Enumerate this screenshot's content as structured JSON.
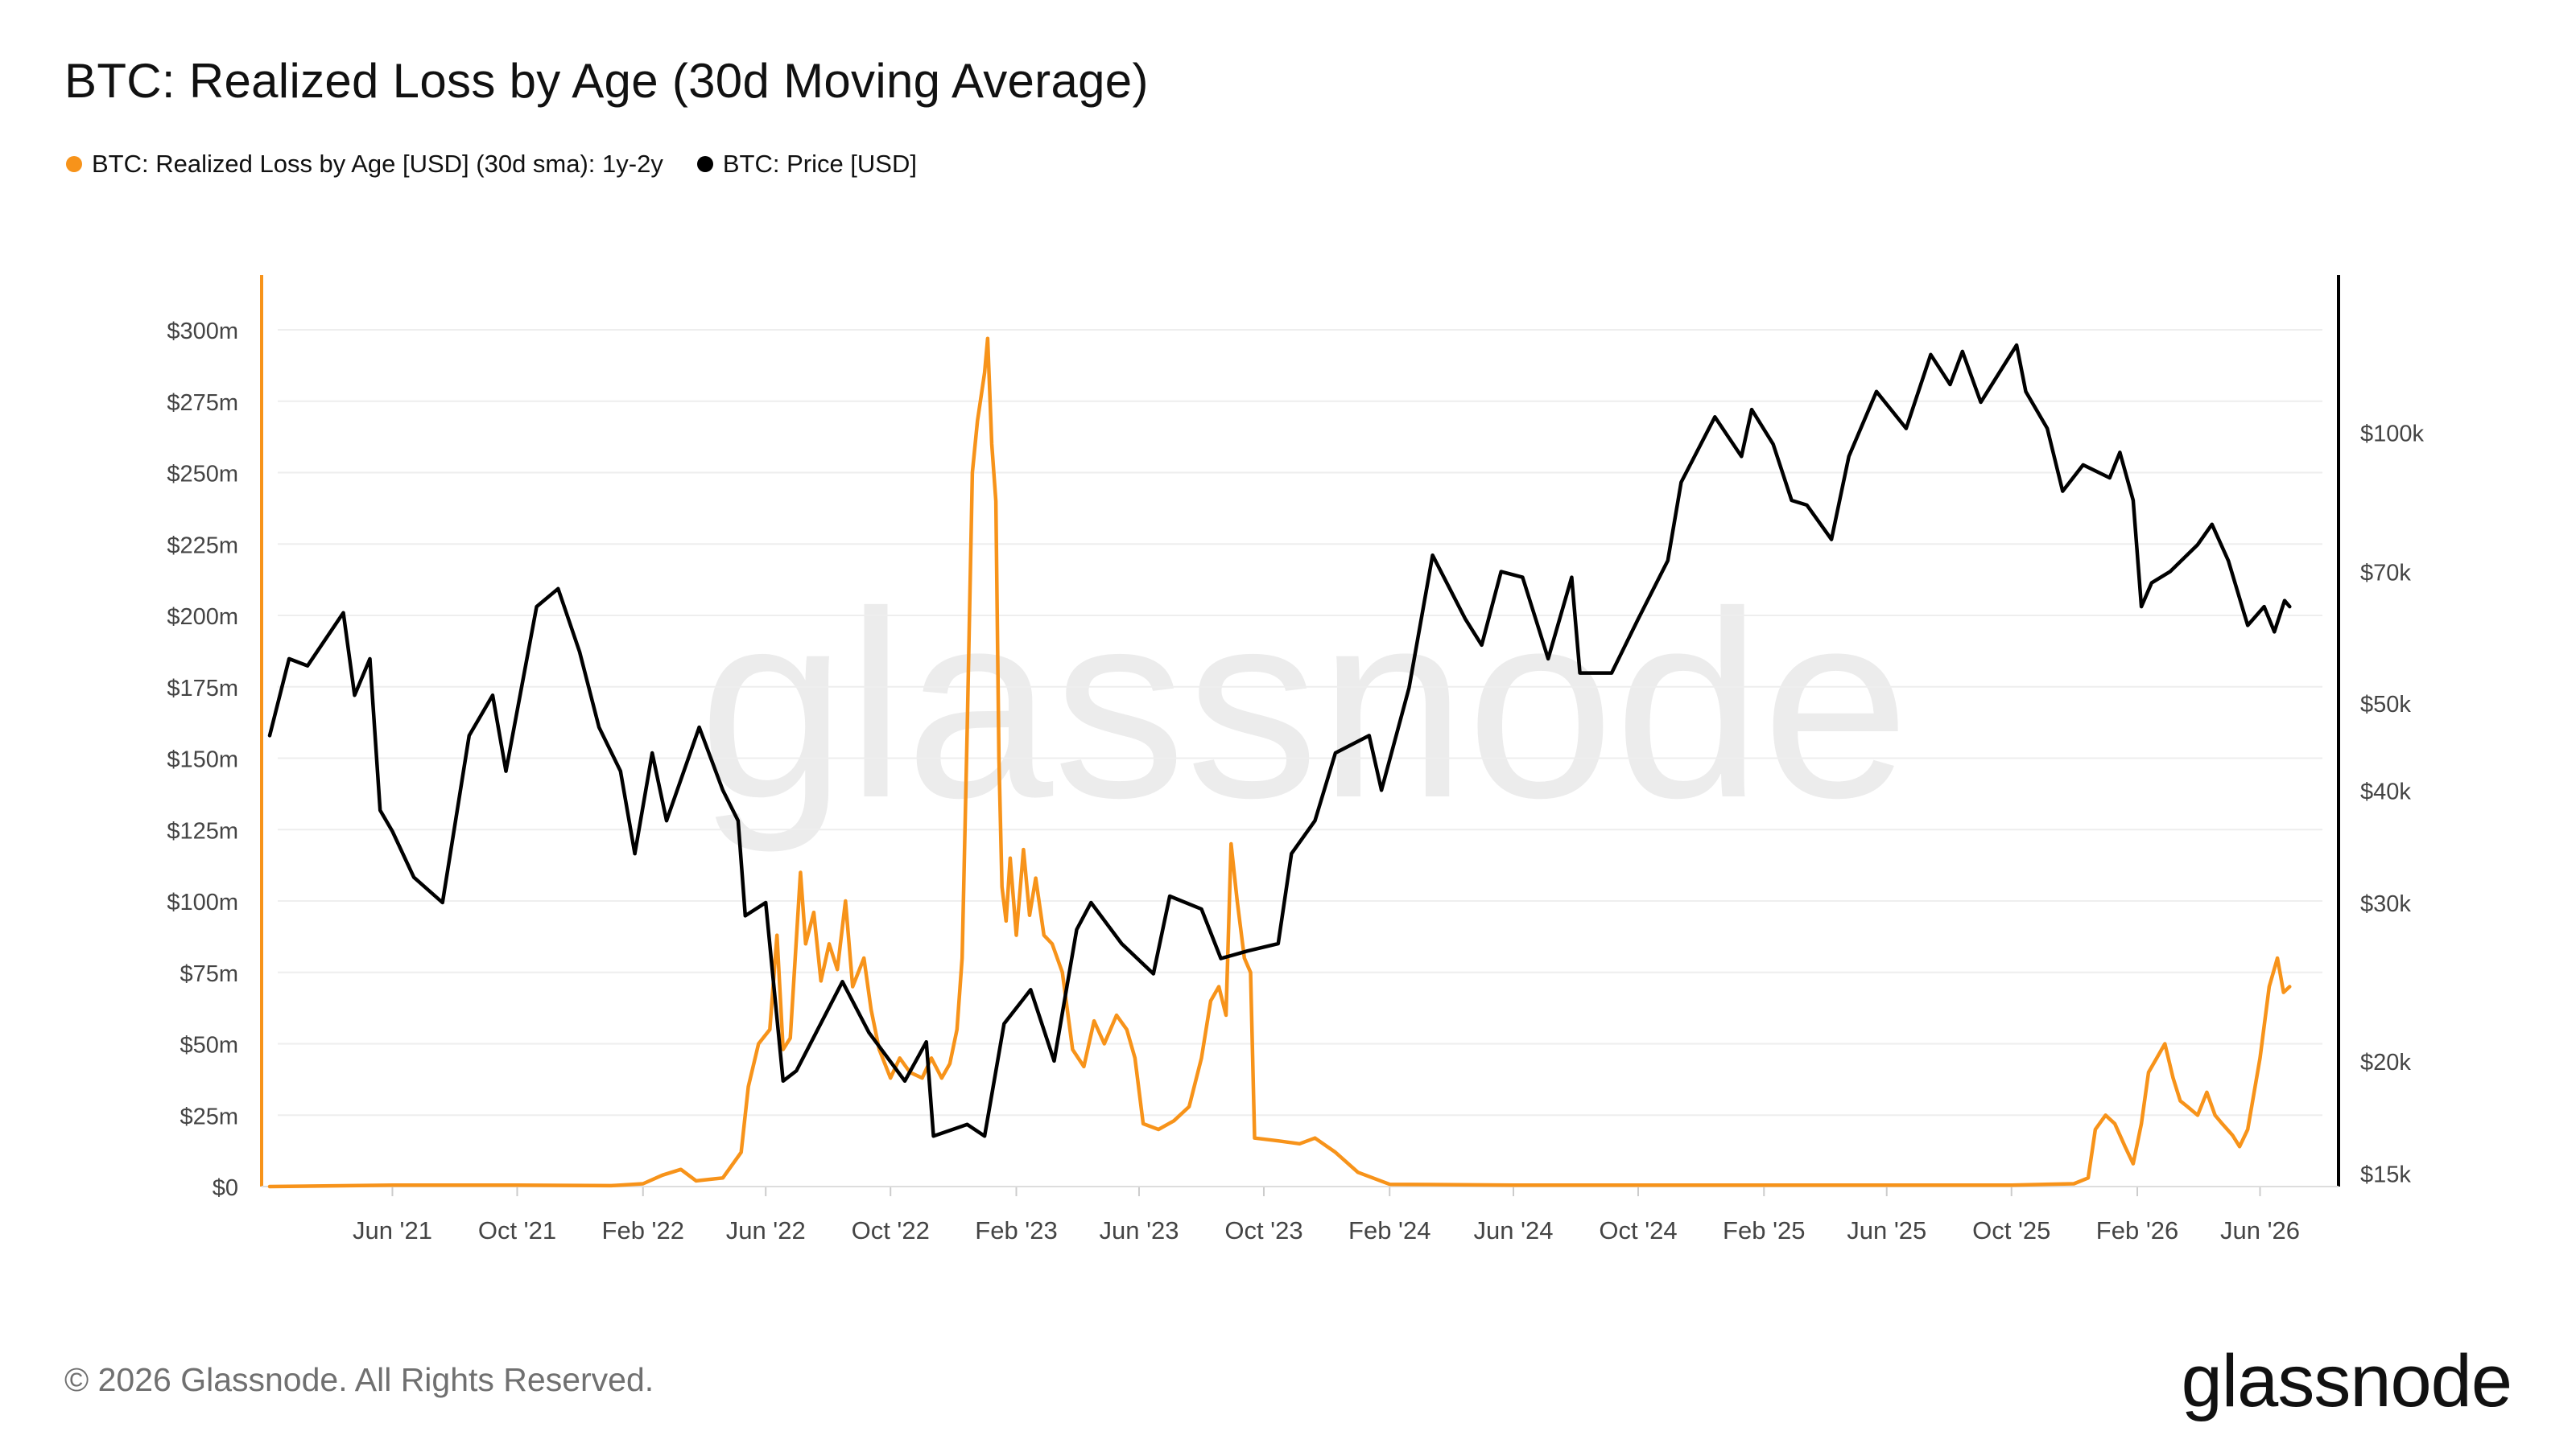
{
  "title": "BTC: Realized Loss by Age (30d Moving Average)",
  "legend": [
    {
      "label": "BTC: Realized Loss by Age [USD] (30d sma): 1y-2y",
      "color": "#f7931a"
    },
    {
      "label": "BTC: Price [USD]",
      "color": "#000000"
    }
  ],
  "watermark": "glassnode",
  "footer": {
    "copyright": "© 2026 Glassnode. All Rights Reserved.",
    "logo": "glassnode"
  },
  "chart_data": {
    "type": "line",
    "title": "BTC: Realized Loss by Age (30d Moving Average)",
    "x_range": [
      "2021-02-01",
      "2026-08-01"
    ],
    "x_ticks": [
      {
        "label": "Jun '21",
        "date": "2021-06-01"
      },
      {
        "label": "Oct '21",
        "date": "2021-10-01"
      },
      {
        "label": "Feb '22",
        "date": "2022-02-01"
      },
      {
        "label": "Jun '22",
        "date": "2022-06-01"
      },
      {
        "label": "Oct '22",
        "date": "2022-10-01"
      },
      {
        "label": "Feb '23",
        "date": "2023-02-01"
      },
      {
        "label": "Jun '23",
        "date": "2023-06-01"
      },
      {
        "label": "Oct '23",
        "date": "2023-10-01"
      },
      {
        "label": "Feb '24",
        "date": "2024-02-01"
      },
      {
        "label": "Jun '24",
        "date": "2024-06-01"
      },
      {
        "label": "Oct '24",
        "date": "2024-10-01"
      },
      {
        "label": "Feb '25",
        "date": "2025-02-01"
      },
      {
        "label": "Jun '25",
        "date": "2025-06-01"
      },
      {
        "label": "Oct '25",
        "date": "2025-10-01"
      },
      {
        "label": "Feb '26",
        "date": "2026-02-01"
      },
      {
        "label": "Jun '26",
        "date": "2026-06-01"
      }
    ],
    "y_left": {
      "range": [
        0,
        300
      ],
      "unit": "USD millions",
      "ticks": [
        {
          "label": "$0",
          "value": 0
        },
        {
          "label": "$25m",
          "value": 25
        },
        {
          "label": "$50m",
          "value": 50
        },
        {
          "label": "$75m",
          "value": 75
        },
        {
          "label": "$100m",
          "value": 100
        },
        {
          "label": "$125m",
          "value": 125
        },
        {
          "label": "$150m",
          "value": 150
        },
        {
          "label": "$175m",
          "value": 175
        },
        {
          "label": "$200m",
          "value": 200
        },
        {
          "label": "$225m",
          "value": 225
        },
        {
          "label": "$250m",
          "value": 250
        },
        {
          "label": "$275m",
          "value": 275
        },
        {
          "label": "$300m",
          "value": 300
        }
      ]
    },
    "y_right": {
      "scale": "log",
      "range": [
        14500,
        130000
      ],
      "unit": "USD",
      "ticks": [
        {
          "label": "$15k",
          "value": 15000
        },
        {
          "label": "$20k",
          "value": 20000
        },
        {
          "label": "$30k",
          "value": 30000
        },
        {
          "label": "$40k",
          "value": 40000
        },
        {
          "label": "$50k",
          "value": 50000
        },
        {
          "label": "$70k",
          "value": 70000
        },
        {
          "label": "$100k",
          "value": 100000
        }
      ]
    },
    "grid": true,
    "legend_position": "top-left",
    "series": [
      {
        "name": "BTC: Realized Loss by Age [USD] (30d sma): 1y-2y",
        "axis": "left",
        "color": "#f7931a",
        "points": [
          [
            "2021-02-01",
            0
          ],
          [
            "2021-06-01",
            0.5
          ],
          [
            "2021-10-01",
            0.5
          ],
          [
            "2022-01-01",
            0.3
          ],
          [
            "2022-02-01",
            1
          ],
          [
            "2022-02-20",
            4
          ],
          [
            "2022-03-10",
            6
          ],
          [
            "2022-03-25",
            2
          ],
          [
            "2022-04-20",
            3
          ],
          [
            "2022-05-08",
            12
          ],
          [
            "2022-05-15",
            35
          ],
          [
            "2022-05-25",
            50
          ],
          [
            "2022-06-05",
            55
          ],
          [
            "2022-06-12",
            88
          ],
          [
            "2022-06-18",
            48
          ],
          [
            "2022-06-25",
            52
          ],
          [
            "2022-07-05",
            110
          ],
          [
            "2022-07-10",
            85
          ],
          [
            "2022-07-18",
            96
          ],
          [
            "2022-07-25",
            72
          ],
          [
            "2022-08-02",
            85
          ],
          [
            "2022-08-10",
            76
          ],
          [
            "2022-08-18",
            100
          ],
          [
            "2022-08-25",
            70
          ],
          [
            "2022-09-05",
            80
          ],
          [
            "2022-09-12",
            62
          ],
          [
            "2022-09-20",
            48
          ],
          [
            "2022-10-01",
            38
          ],
          [
            "2022-10-10",
            45
          ],
          [
            "2022-10-20",
            40
          ],
          [
            "2022-11-01",
            38
          ],
          [
            "2022-11-10",
            45
          ],
          [
            "2022-11-20",
            38
          ],
          [
            "2022-11-28",
            43
          ],
          [
            "2022-12-05",
            55
          ],
          [
            "2022-12-10",
            80
          ],
          [
            "2022-12-15",
            160
          ],
          [
            "2022-12-20",
            250
          ],
          [
            "2022-12-25",
            268
          ],
          [
            "2023-01-01",
            285
          ],
          [
            "2023-01-04",
            297
          ],
          [
            "2023-01-08",
            260
          ],
          [
            "2023-01-12",
            240
          ],
          [
            "2023-01-15",
            150
          ],
          [
            "2023-01-18",
            105
          ],
          [
            "2023-01-22",
            93
          ],
          [
            "2023-01-26",
            115
          ],
          [
            "2023-02-01",
            88
          ],
          [
            "2023-02-08",
            118
          ],
          [
            "2023-02-14",
            95
          ],
          [
            "2023-02-20",
            108
          ],
          [
            "2023-02-28",
            88
          ],
          [
            "2023-03-08",
            85
          ],
          [
            "2023-03-18",
            75
          ],
          [
            "2023-03-28",
            48
          ],
          [
            "2023-04-08",
            42
          ],
          [
            "2023-04-18",
            58
          ],
          [
            "2023-04-28",
            50
          ],
          [
            "2023-05-10",
            60
          ],
          [
            "2023-05-20",
            55
          ],
          [
            "2023-05-28",
            45
          ],
          [
            "2023-06-05",
            22
          ],
          [
            "2023-06-20",
            20
          ],
          [
            "2023-07-05",
            23
          ],
          [
            "2023-07-20",
            28
          ],
          [
            "2023-08-01",
            45
          ],
          [
            "2023-08-10",
            65
          ],
          [
            "2023-08-18",
            70
          ],
          [
            "2023-08-25",
            60
          ],
          [
            "2023-08-30",
            120
          ],
          [
            "2023-09-05",
            100
          ],
          [
            "2023-09-12",
            80
          ],
          [
            "2023-09-18",
            75
          ],
          [
            "2023-09-22",
            17
          ],
          [
            "2023-10-15",
            16
          ],
          [
            "2023-11-05",
            15
          ],
          [
            "2023-11-20",
            17
          ],
          [
            "2023-12-10",
            12
          ],
          [
            "2024-01-01",
            5
          ],
          [
            "2024-02-01",
            0.8
          ],
          [
            "2024-06-01",
            0.5
          ],
          [
            "2024-10-01",
            0.5
          ],
          [
            "2025-02-01",
            0.5
          ],
          [
            "2025-06-01",
            0.5
          ],
          [
            "2025-10-01",
            0.5
          ],
          [
            "2025-12-01",
            1
          ],
          [
            "2025-12-15",
            3
          ],
          [
            "2025-12-22",
            20
          ],
          [
            "2026-01-01",
            25
          ],
          [
            "2026-01-10",
            22
          ],
          [
            "2026-01-20",
            14
          ],
          [
            "2026-01-28",
            8
          ],
          [
            "2026-02-05",
            22
          ],
          [
            "2026-02-12",
            40
          ],
          [
            "2026-02-20",
            45
          ],
          [
            "2026-02-28",
            50
          ],
          [
            "2026-03-08",
            38
          ],
          [
            "2026-03-15",
            30
          ],
          [
            "2026-03-22",
            28
          ],
          [
            "2026-04-01",
            25
          ],
          [
            "2026-04-10",
            33
          ],
          [
            "2026-04-18",
            25
          ],
          [
            "2026-04-25",
            22
          ],
          [
            "2026-05-05",
            18
          ],
          [
            "2026-05-12",
            14
          ],
          [
            "2026-05-20",
            20
          ],
          [
            "2026-06-01",
            45
          ],
          [
            "2026-06-10",
            70
          ],
          [
            "2026-06-18",
            80
          ],
          [
            "2026-06-24",
            68
          ],
          [
            "2026-06-30",
            70
          ]
        ]
      },
      {
        "name": "BTC: Price [USD]",
        "axis": "right",
        "color": "#000000",
        "points": [
          [
            "2021-02-01",
            46000
          ],
          [
            "2021-02-20",
            56000
          ],
          [
            "2021-03-10",
            55000
          ],
          [
            "2021-04-14",
            63000
          ],
          [
            "2021-04-25",
            51000
          ],
          [
            "2021-05-10",
            56000
          ],
          [
            "2021-05-20",
            38000
          ],
          [
            "2021-06-01",
            36000
          ],
          [
            "2021-06-22",
            32000
          ],
          [
            "2021-07-20",
            30000
          ],
          [
            "2021-08-15",
            46000
          ],
          [
            "2021-09-07",
            51000
          ],
          [
            "2021-09-20",
            42000
          ],
          [
            "2021-10-20",
            64000
          ],
          [
            "2021-11-10",
            67000
          ],
          [
            "2021-12-01",
            57000
          ],
          [
            "2021-12-20",
            47000
          ],
          [
            "2022-01-10",
            42000
          ],
          [
            "2022-01-24",
            34000
          ],
          [
            "2022-02-10",
            44000
          ],
          [
            "2022-02-24",
            37000
          ],
          [
            "2022-03-28",
            47000
          ],
          [
            "2022-04-20",
            40000
          ],
          [
            "2022-05-05",
            37000
          ],
          [
            "2022-05-12",
            29000
          ],
          [
            "2022-06-01",
            30000
          ],
          [
            "2022-06-18",
            19000
          ],
          [
            "2022-07-01",
            19500
          ],
          [
            "2022-08-15",
            24500
          ],
          [
            "2022-09-10",
            21500
          ],
          [
            "2022-10-15",
            19000
          ],
          [
            "2022-11-05",
            21000
          ],
          [
            "2022-11-12",
            16500
          ],
          [
            "2022-12-15",
            17000
          ],
          [
            "2023-01-01",
            16500
          ],
          [
            "2023-01-20",
            22000
          ],
          [
            "2023-02-15",
            24000
          ],
          [
            "2023-03-10",
            20000
          ],
          [
            "2023-04-01",
            28000
          ],
          [
            "2023-04-15",
            30000
          ],
          [
            "2023-05-15",
            27000
          ],
          [
            "2023-06-15",
            25000
          ],
          [
            "2023-07-01",
            30500
          ],
          [
            "2023-08-01",
            29500
          ],
          [
            "2023-08-20",
            26000
          ],
          [
            "2023-09-15",
            26500
          ],
          [
            "2023-10-15",
            27000
          ],
          [
            "2023-10-28",
            34000
          ],
          [
            "2023-11-20",
            37000
          ],
          [
            "2023-12-10",
            44000
          ],
          [
            "2024-01-12",
            46000
          ],
          [
            "2024-01-24",
            40000
          ],
          [
            "2024-02-20",
            52000
          ],
          [
            "2024-03-14",
            73000
          ],
          [
            "2024-04-15",
            62000
          ],
          [
            "2024-05-01",
            58000
          ],
          [
            "2024-05-20",
            70000
          ],
          [
            "2024-06-10",
            69000
          ],
          [
            "2024-07-05",
            56000
          ],
          [
            "2024-07-28",
            69000
          ],
          [
            "2024-08-05",
            54000
          ],
          [
            "2024-09-05",
            54000
          ],
          [
            "2024-10-01",
            62000
          ],
          [
            "2024-10-30",
            72000
          ],
          [
            "2024-11-12",
            88000
          ],
          [
            "2024-12-15",
            104000
          ],
          [
            "2025-01-10",
            94000
          ],
          [
            "2025-01-20",
            106000
          ],
          [
            "2025-02-10",
            97000
          ],
          [
            "2025-02-28",
            84000
          ],
          [
            "2025-03-15",
            83000
          ],
          [
            "2025-04-08",
            76000
          ],
          [
            "2025-04-25",
            94000
          ],
          [
            "2025-05-22",
            111000
          ],
          [
            "2025-06-20",
            101000
          ],
          [
            "2025-07-14",
            122000
          ],
          [
            "2025-08-02",
            113000
          ],
          [
            "2025-08-14",
            123000
          ],
          [
            "2025-09-01",
            108000
          ],
          [
            "2025-10-06",
            125000
          ],
          [
            "2025-10-15",
            111000
          ],
          [
            "2025-11-05",
            101000
          ],
          [
            "2025-11-20",
            86000
          ],
          [
            "2025-12-10",
            92000
          ],
          [
            "2026-01-05",
            89000
          ],
          [
            "2026-01-15",
            95000
          ],
          [
            "2026-01-28",
            84000
          ],
          [
            "2026-02-05",
            64000
          ],
          [
            "2026-02-15",
            68000
          ],
          [
            "2026-03-05",
            70000
          ],
          [
            "2026-04-01",
            75000
          ],
          [
            "2026-04-15",
            79000
          ],
          [
            "2026-05-01",
            72000
          ],
          [
            "2026-05-20",
            61000
          ],
          [
            "2026-06-05",
            64000
          ],
          [
            "2026-06-15",
            60000
          ],
          [
            "2026-06-25",
            65000
          ],
          [
            "2026-06-30",
            64000
          ]
        ]
      }
    ]
  }
}
